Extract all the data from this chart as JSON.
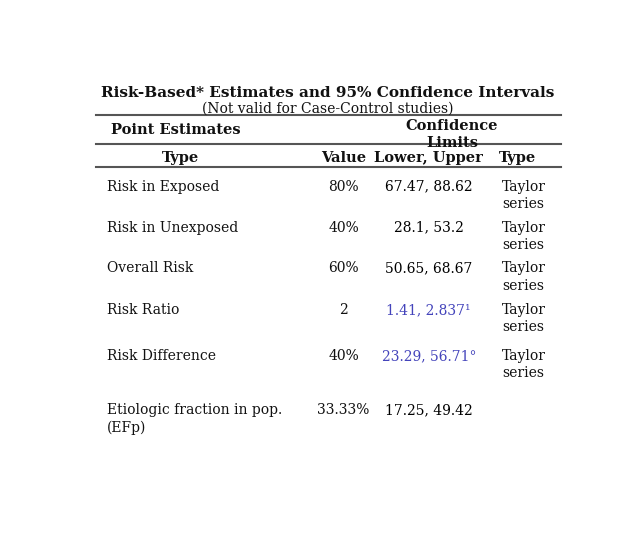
{
  "title_line1": "Risk-Based* Estimates and 95% Confidence Intervals",
  "title_line2": "(Not valid for Case-Control studies)",
  "bg_color": "#ffffff",
  "header1_col1": "Point Estimates",
  "header1_col23": "Confidence\nLimits",
  "header2_col1": "Type",
  "header2_col2": "Value",
  "header2_col3": "Lower, Upper",
  "header2_col4": "Type",
  "rows": [
    {
      "type": "Risk in Exposed",
      "value": "80%",
      "lower_upper": "67.47, 88.62",
      "lu_color": "#000000",
      "ci_type": "Taylor\nseries"
    },
    {
      "type": "Risk in Unexposed",
      "value": "40%",
      "lower_upper": "28.1, 53.2",
      "lu_color": "#000000",
      "ci_type": "Taylor\nseries"
    },
    {
      "type": "Overall Risk",
      "value": "60%",
      "lower_upper": "50.65, 68.67",
      "lu_color": "#000000",
      "ci_type": "Taylor\nseries"
    },
    {
      "type": "Risk Ratio",
      "value": "2",
      "lower_upper": "1.41, 2.837¹",
      "lu_color": "#4444bb",
      "ci_type": "Taylor\nseries"
    },
    {
      "type": "Risk Difference",
      "value": "40%",
      "lower_upper": "23.29, 56.71°",
      "lu_color": "#4444bb",
      "ci_type": "Taylor\nseries"
    },
    {
      "type": "Etiologic fraction in pop.\n(EFp)",
      "value": "33.33%",
      "lower_upper": "17.25, 49.42",
      "lu_color": "#000000",
      "ci_type": ""
    }
  ],
  "text_color": "#111111",
  "line_color": "#555555",
  "title_fontsize": 11,
  "subtitle_fontsize": 10,
  "header_fontsize": 10.5,
  "data_fontsize": 10
}
